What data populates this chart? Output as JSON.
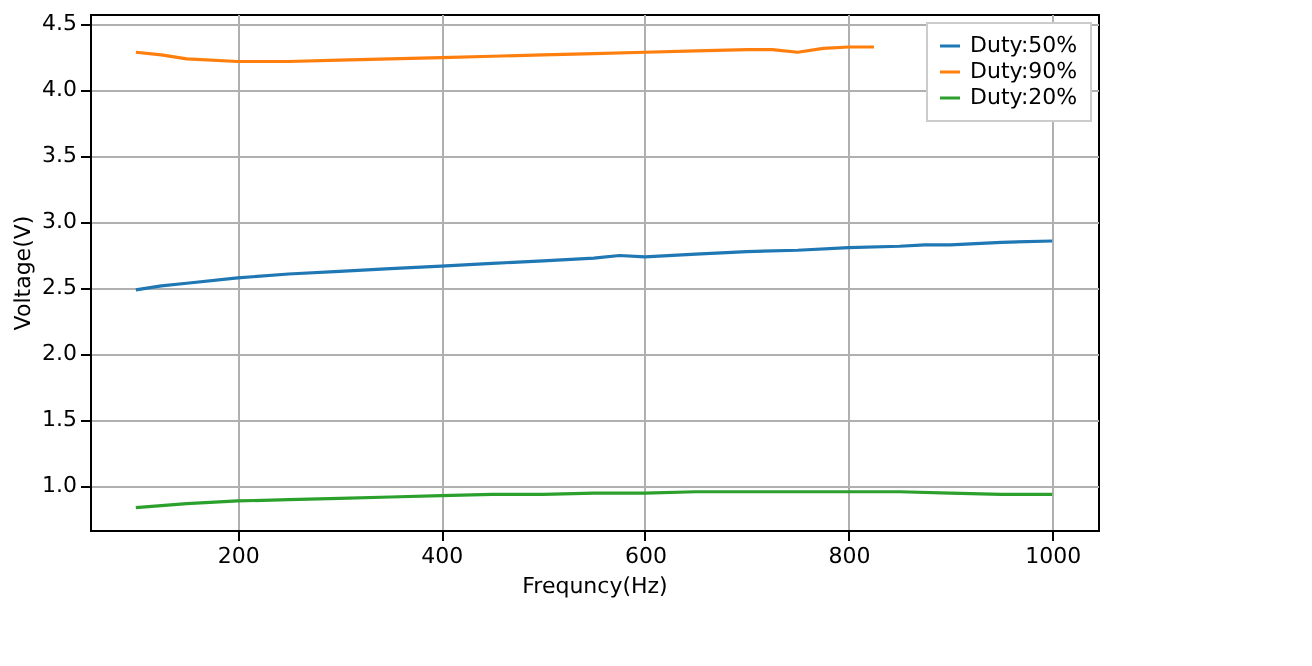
{
  "chart_data": {
    "type": "line",
    "xlabel": "Frequncy(Hz)",
    "ylabel": "Voltage(V)",
    "xlim": [
      55,
      1045
    ],
    "ylim": [
      0.66,
      4.57
    ],
    "xticks": [
      200,
      400,
      600,
      800,
      1000
    ],
    "yticks": [
      {
        "value": 1,
        "label": "1.0"
      },
      {
        "value": 1.5,
        "label": "1.5"
      },
      {
        "value": 2,
        "label": "2.0"
      },
      {
        "value": 2.5,
        "label": "2.5"
      },
      {
        "value": 3,
        "label": "3.0"
      },
      {
        "value": 3.5,
        "label": "3.5"
      },
      {
        "value": 4,
        "label": "4.0"
      },
      {
        "value": 4.5,
        "label": "4.5"
      }
    ],
    "grid": true,
    "legend": "top right",
    "line_style": "solid",
    "marker": "none",
    "series": [
      {
        "name": "Duty:50%",
        "color": "#1f77b4",
        "x": [
          100,
          125,
          150,
          200,
          250,
          300,
          350,
          400,
          450,
          500,
          550,
          575,
          600,
          650,
          700,
          750,
          800,
          850,
          875,
          900,
          950,
          1000
        ],
        "values": [
          2.48,
          2.51,
          2.53,
          2.57,
          2.6,
          2.62,
          2.64,
          2.66,
          2.68,
          2.7,
          2.72,
          2.74,
          2.73,
          2.75,
          2.77,
          2.78,
          2.8,
          2.81,
          2.82,
          2.82,
          2.84,
          2.85
        ]
      },
      {
        "name": "Duty:90%",
        "color": "#ff7f0e",
        "x": [
          100,
          125,
          150,
          200,
          250,
          300,
          350,
          400,
          450,
          500,
          550,
          600,
          650,
          700,
          725,
          750,
          775,
          800,
          825
        ],
        "values": [
          4.28,
          4.26,
          4.23,
          4.21,
          4.21,
          4.22,
          4.23,
          4.24,
          4.25,
          4.26,
          4.27,
          4.28,
          4.29,
          4.3,
          4.3,
          4.28,
          4.31,
          4.32,
          4.32
        ]
      },
      {
        "name": "Duty:20%",
        "color": "#2ca02c",
        "x": [
          100,
          150,
          200,
          250,
          300,
          350,
          400,
          450,
          500,
          550,
          600,
          650,
          700,
          750,
          800,
          850,
          900,
          950,
          1000
        ],
        "values": [
          0.83,
          0.86,
          0.88,
          0.89,
          0.9,
          0.91,
          0.92,
          0.93,
          0.93,
          0.94,
          0.94,
          0.95,
          0.95,
          0.95,
          0.95,
          0.95,
          0.94,
          0.93,
          0.93
        ]
      }
    ]
  }
}
